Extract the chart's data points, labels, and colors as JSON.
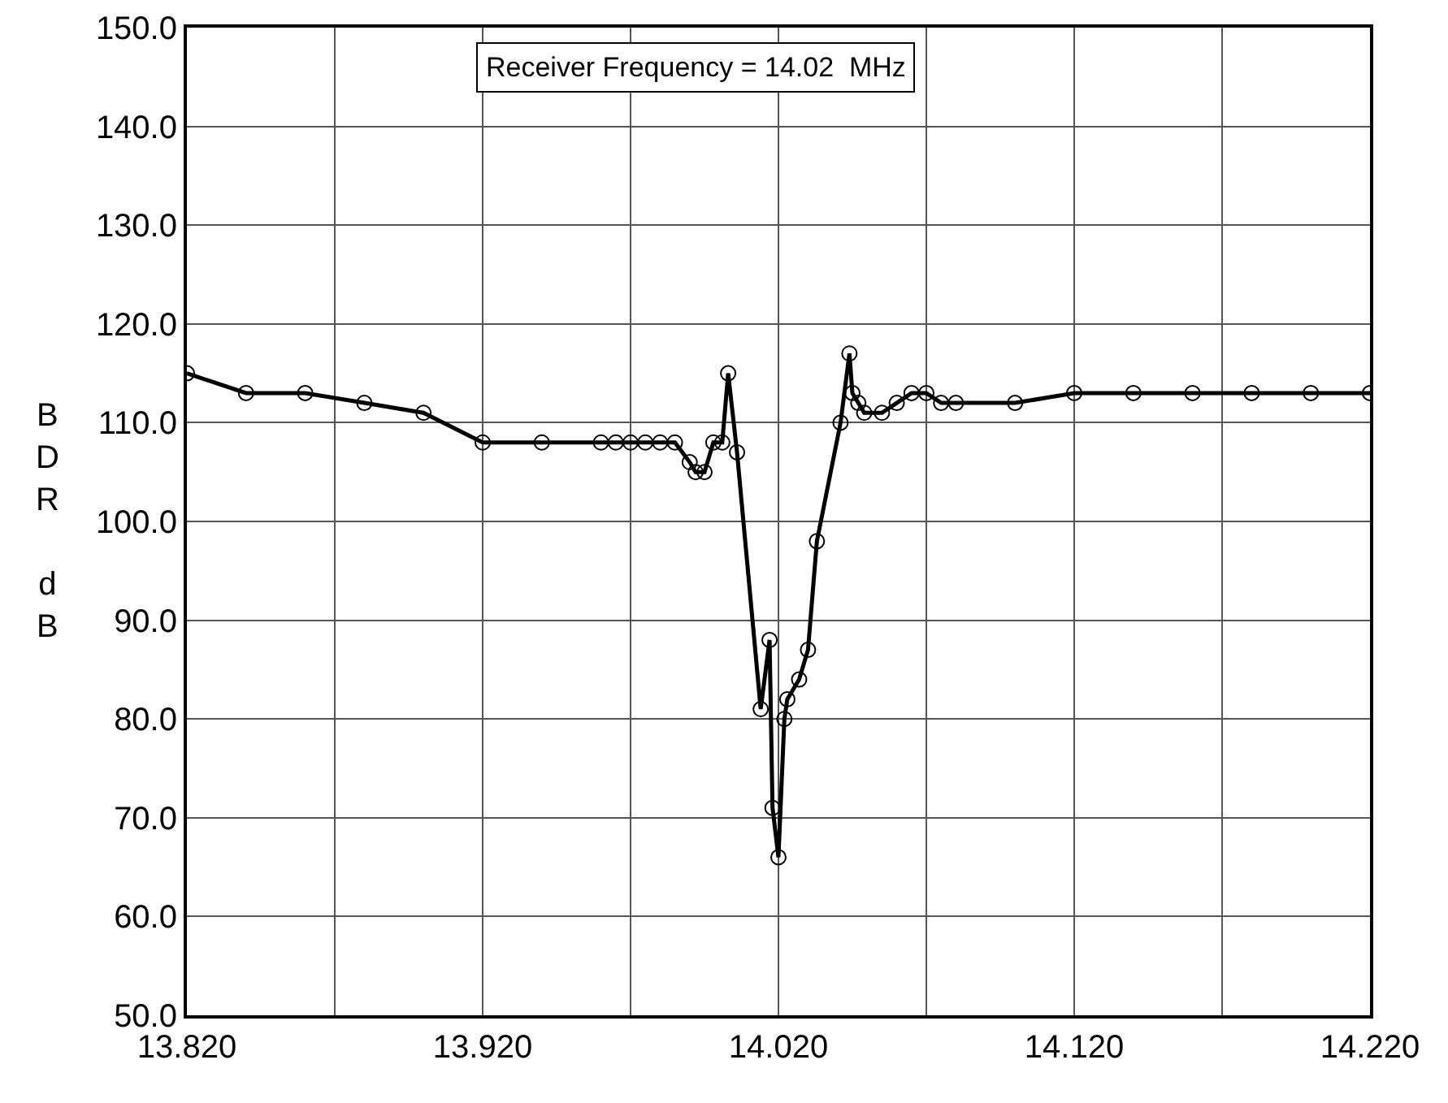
{
  "chart_data": {
    "type": "line",
    "ylabel": "BDR dB",
    "annotations": [
      "Receiver Frequency = 14.02  MHz"
    ],
    "x": [
      13.82,
      13.84,
      13.86,
      13.88,
      13.9,
      13.92,
      13.94,
      13.96,
      13.965,
      13.97,
      13.975,
      13.98,
      13.985,
      13.99,
      13.992,
      13.995,
      13.998,
      14.001,
      14.003,
      14.006,
      14.014,
      14.017,
      14.018,
      14.02,
      14.022,
      14.023,
      14.027,
      14.03,
      14.033,
      14.041,
      14.044,
      14.045,
      14.047,
      14.049,
      14.055,
      14.06,
      14.065,
      14.07,
      14.075,
      14.08,
      14.1,
      14.12,
      14.14,
      14.16,
      14.18,
      14.2,
      14.22
    ],
    "series": [
      {
        "color": "#000000",
        "values": [
          115,
          113,
          113,
          112,
          111,
          108,
          108,
          108,
          108,
          108,
          108,
          108,
          108,
          106,
          105,
          105,
          108,
          108,
          115,
          107,
          81,
          88,
          71,
          66,
          80,
          82,
          84,
          87,
          98,
          110,
          117,
          113,
          112,
          111,
          111,
          112,
          113,
          113,
          112,
          112,
          112,
          113,
          113,
          113,
          113,
          113,
          113
        ]
      }
    ],
    "xlim": [
      13.82,
      14.22
    ],
    "xticks": [
      {
        "value": 13.82,
        "label": "13.820"
      },
      {
        "value": 13.87,
        "label": null
      },
      {
        "value": 13.92,
        "label": "13.920"
      },
      {
        "value": 13.97,
        "label": null
      },
      {
        "value": 14.02,
        "label": "14.020"
      },
      {
        "value": 14.07,
        "label": null
      },
      {
        "value": 14.12,
        "label": "14.120"
      },
      {
        "value": 14.17,
        "label": null
      },
      {
        "value": 14.22,
        "label": "14.220"
      }
    ],
    "ylim": [
      50,
      150
    ],
    "yticks": [
      {
        "value": 50,
        "label": "50.0"
      },
      {
        "value": 60,
        "label": "60.0"
      },
      {
        "value": 70,
        "label": "70.0"
      },
      {
        "value": 80,
        "label": "80.0"
      },
      {
        "value": 90,
        "label": "90.0"
      },
      {
        "value": 100,
        "label": "100.0"
      },
      {
        "value": 110,
        "label": "110.0"
      },
      {
        "value": 120,
        "label": "120.0"
      },
      {
        "value": 130,
        "label": "130.0"
      },
      {
        "value": 140,
        "label": "140.0"
      },
      {
        "value": 150,
        "label": "150.0"
      }
    ],
    "grid": true,
    "marker": "circle",
    "line_style": "solid"
  }
}
